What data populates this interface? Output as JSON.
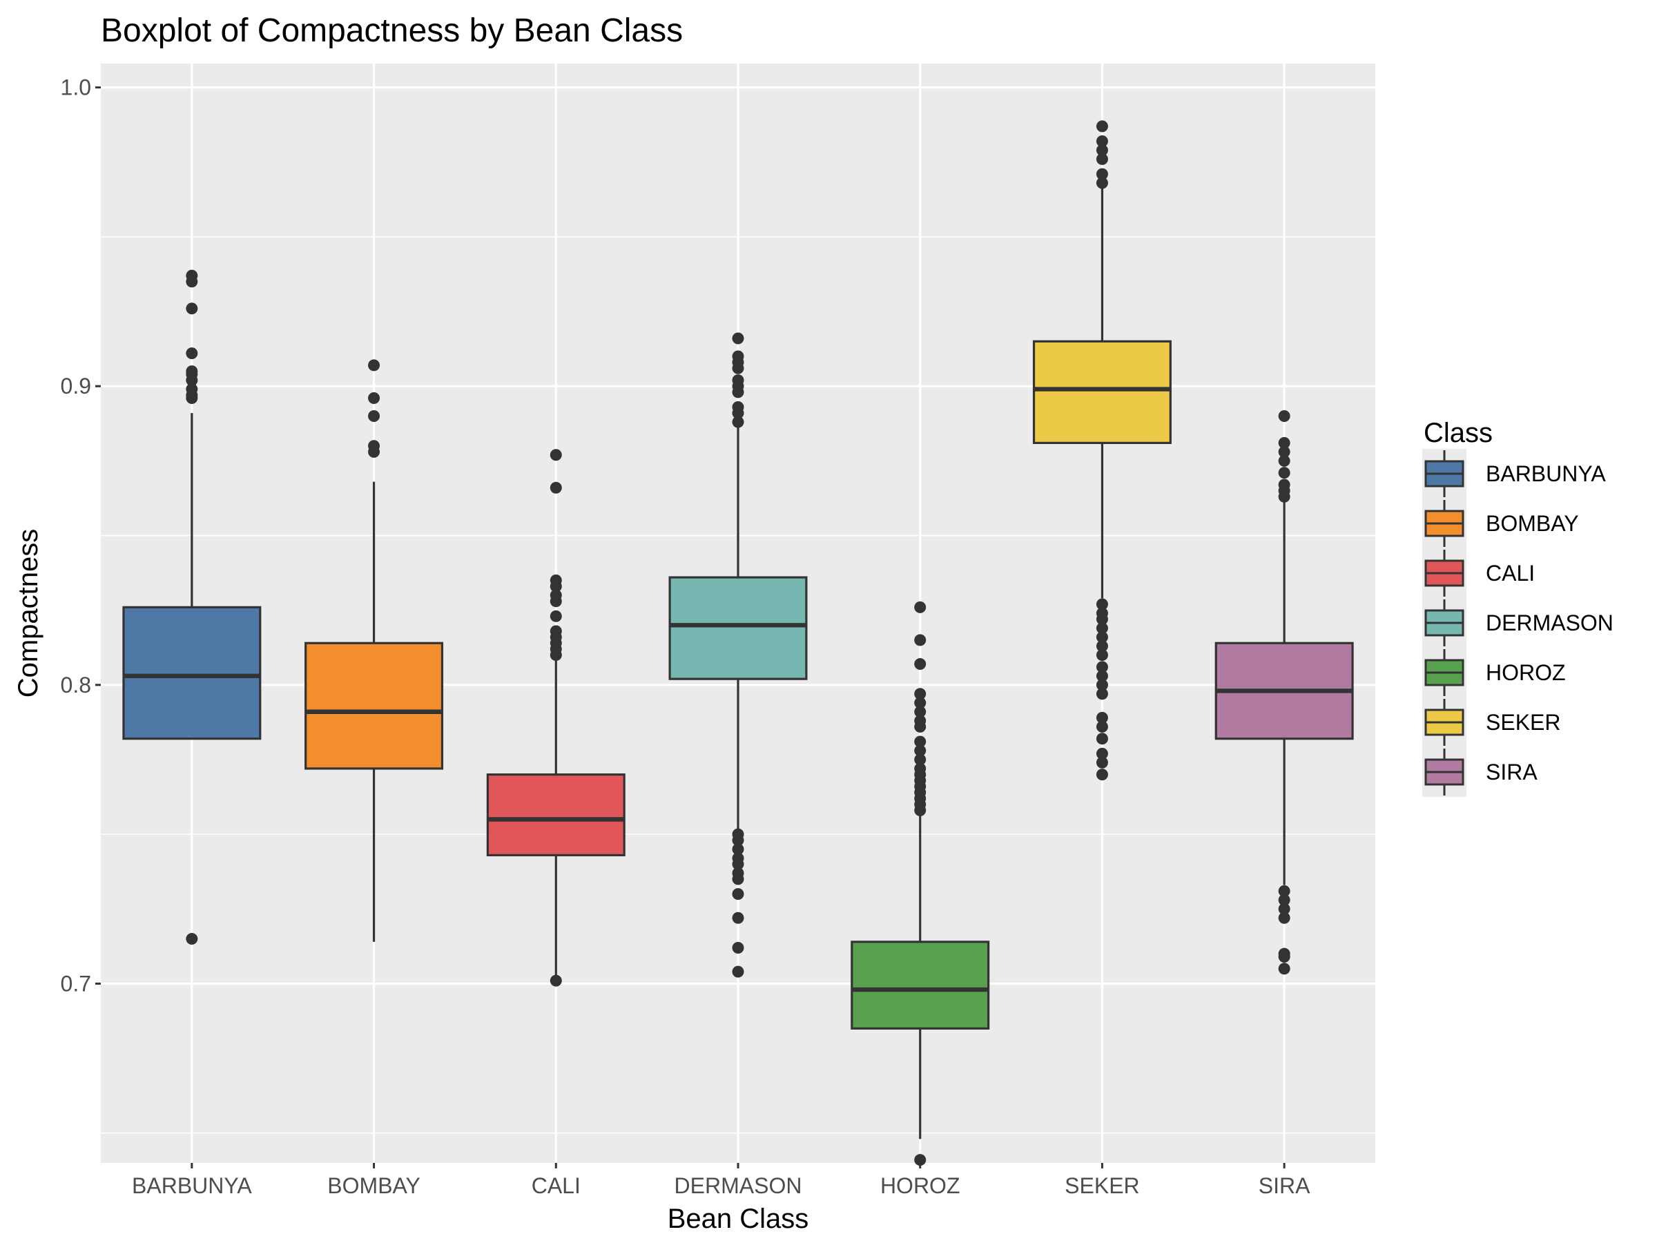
{
  "chart_data": {
    "type": "boxplot",
    "title": "Boxplot of Compactness by Bean Class",
    "xlabel": "Bean Class",
    "ylabel": "Compactness",
    "ylim": [
      0.64,
      1.008
    ],
    "yticks": [
      0.7,
      0.8,
      0.9,
      1.0
    ],
    "ytick_labels": [
      "0.7",
      "0.8",
      "0.9",
      "1.0"
    ],
    "grid": true,
    "legend": {
      "title": "Class",
      "placement": "right"
    },
    "categories": [
      "BARBUNYA",
      "BOMBAY",
      "CALI",
      "DERMASON",
      "HOROZ",
      "SEKER",
      "SIRA"
    ],
    "series": [
      {
        "name": "BARBUNYA",
        "color": "#4E79A7",
        "q1": 0.782,
        "median": 0.803,
        "q3": 0.826,
        "whisker_low": 0.782,
        "whisker_high": 0.891,
        "outliers": [
          0.937,
          0.935,
          0.926,
          0.911,
          0.905,
          0.904,
          0.902,
          0.899,
          0.897,
          0.896,
          0.715
        ]
      },
      {
        "name": "BOMBAY",
        "color": "#F28E2B",
        "q1": 0.772,
        "median": 0.791,
        "q3": 0.814,
        "whisker_low": 0.714,
        "whisker_high": 0.868,
        "outliers": [
          0.907,
          0.896,
          0.89,
          0.88,
          0.878
        ]
      },
      {
        "name": "CALI",
        "color": "#E15759",
        "q1": 0.743,
        "median": 0.755,
        "q3": 0.77,
        "whisker_low": 0.702,
        "whisker_high": 0.809,
        "outliers": [
          0.877,
          0.866,
          0.835,
          0.833,
          0.83,
          0.828,
          0.823,
          0.818,
          0.816,
          0.814,
          0.812,
          0.81,
          0.701
        ]
      },
      {
        "name": "DERMASON",
        "color": "#76B7B2",
        "q1": 0.802,
        "median": 0.82,
        "q3": 0.836,
        "whisker_low": 0.751,
        "whisker_high": 0.887,
        "outliers": [
          0.916,
          0.91,
          0.908,
          0.906,
          0.902,
          0.9,
          0.898,
          0.893,
          0.891,
          0.888,
          0.75,
          0.748,
          0.745,
          0.742,
          0.74,
          0.737,
          0.735,
          0.73,
          0.722,
          0.712,
          0.704
        ]
      },
      {
        "name": "HOROZ",
        "color": "#59A14F",
        "q1": 0.685,
        "median": 0.698,
        "q3": 0.714,
        "whisker_low": 0.648,
        "whisker_high": 0.757,
        "outliers": [
          0.826,
          0.815,
          0.807,
          0.797,
          0.794,
          0.791,
          0.788,
          0.786,
          0.781,
          0.778,
          0.775,
          0.772,
          0.77,
          0.768,
          0.766,
          0.764,
          0.762,
          0.76,
          0.758,
          0.641
        ]
      },
      {
        "name": "SEKER",
        "color": "#EDC948",
        "q1": 0.881,
        "median": 0.899,
        "q3": 0.915,
        "whisker_low": 0.829,
        "whisker_high": 0.967,
        "outliers": [
          0.987,
          0.982,
          0.979,
          0.976,
          0.971,
          0.968,
          0.827,
          0.824,
          0.822,
          0.819,
          0.816,
          0.813,
          0.81,
          0.806,
          0.803,
          0.8,
          0.797,
          0.789,
          0.786,
          0.782,
          0.777,
          0.774,
          0.77
        ]
      },
      {
        "name": "SIRA",
        "color": "#B07AA1",
        "q1": 0.782,
        "median": 0.798,
        "q3": 0.814,
        "whisker_low": 0.733,
        "whisker_high": 0.862,
        "outliers": [
          0.89,
          0.881,
          0.878,
          0.875,
          0.871,
          0.867,
          0.865,
          0.863,
          0.731,
          0.728,
          0.725,
          0.722,
          0.71,
          0.709,
          0.705
        ]
      }
    ]
  }
}
